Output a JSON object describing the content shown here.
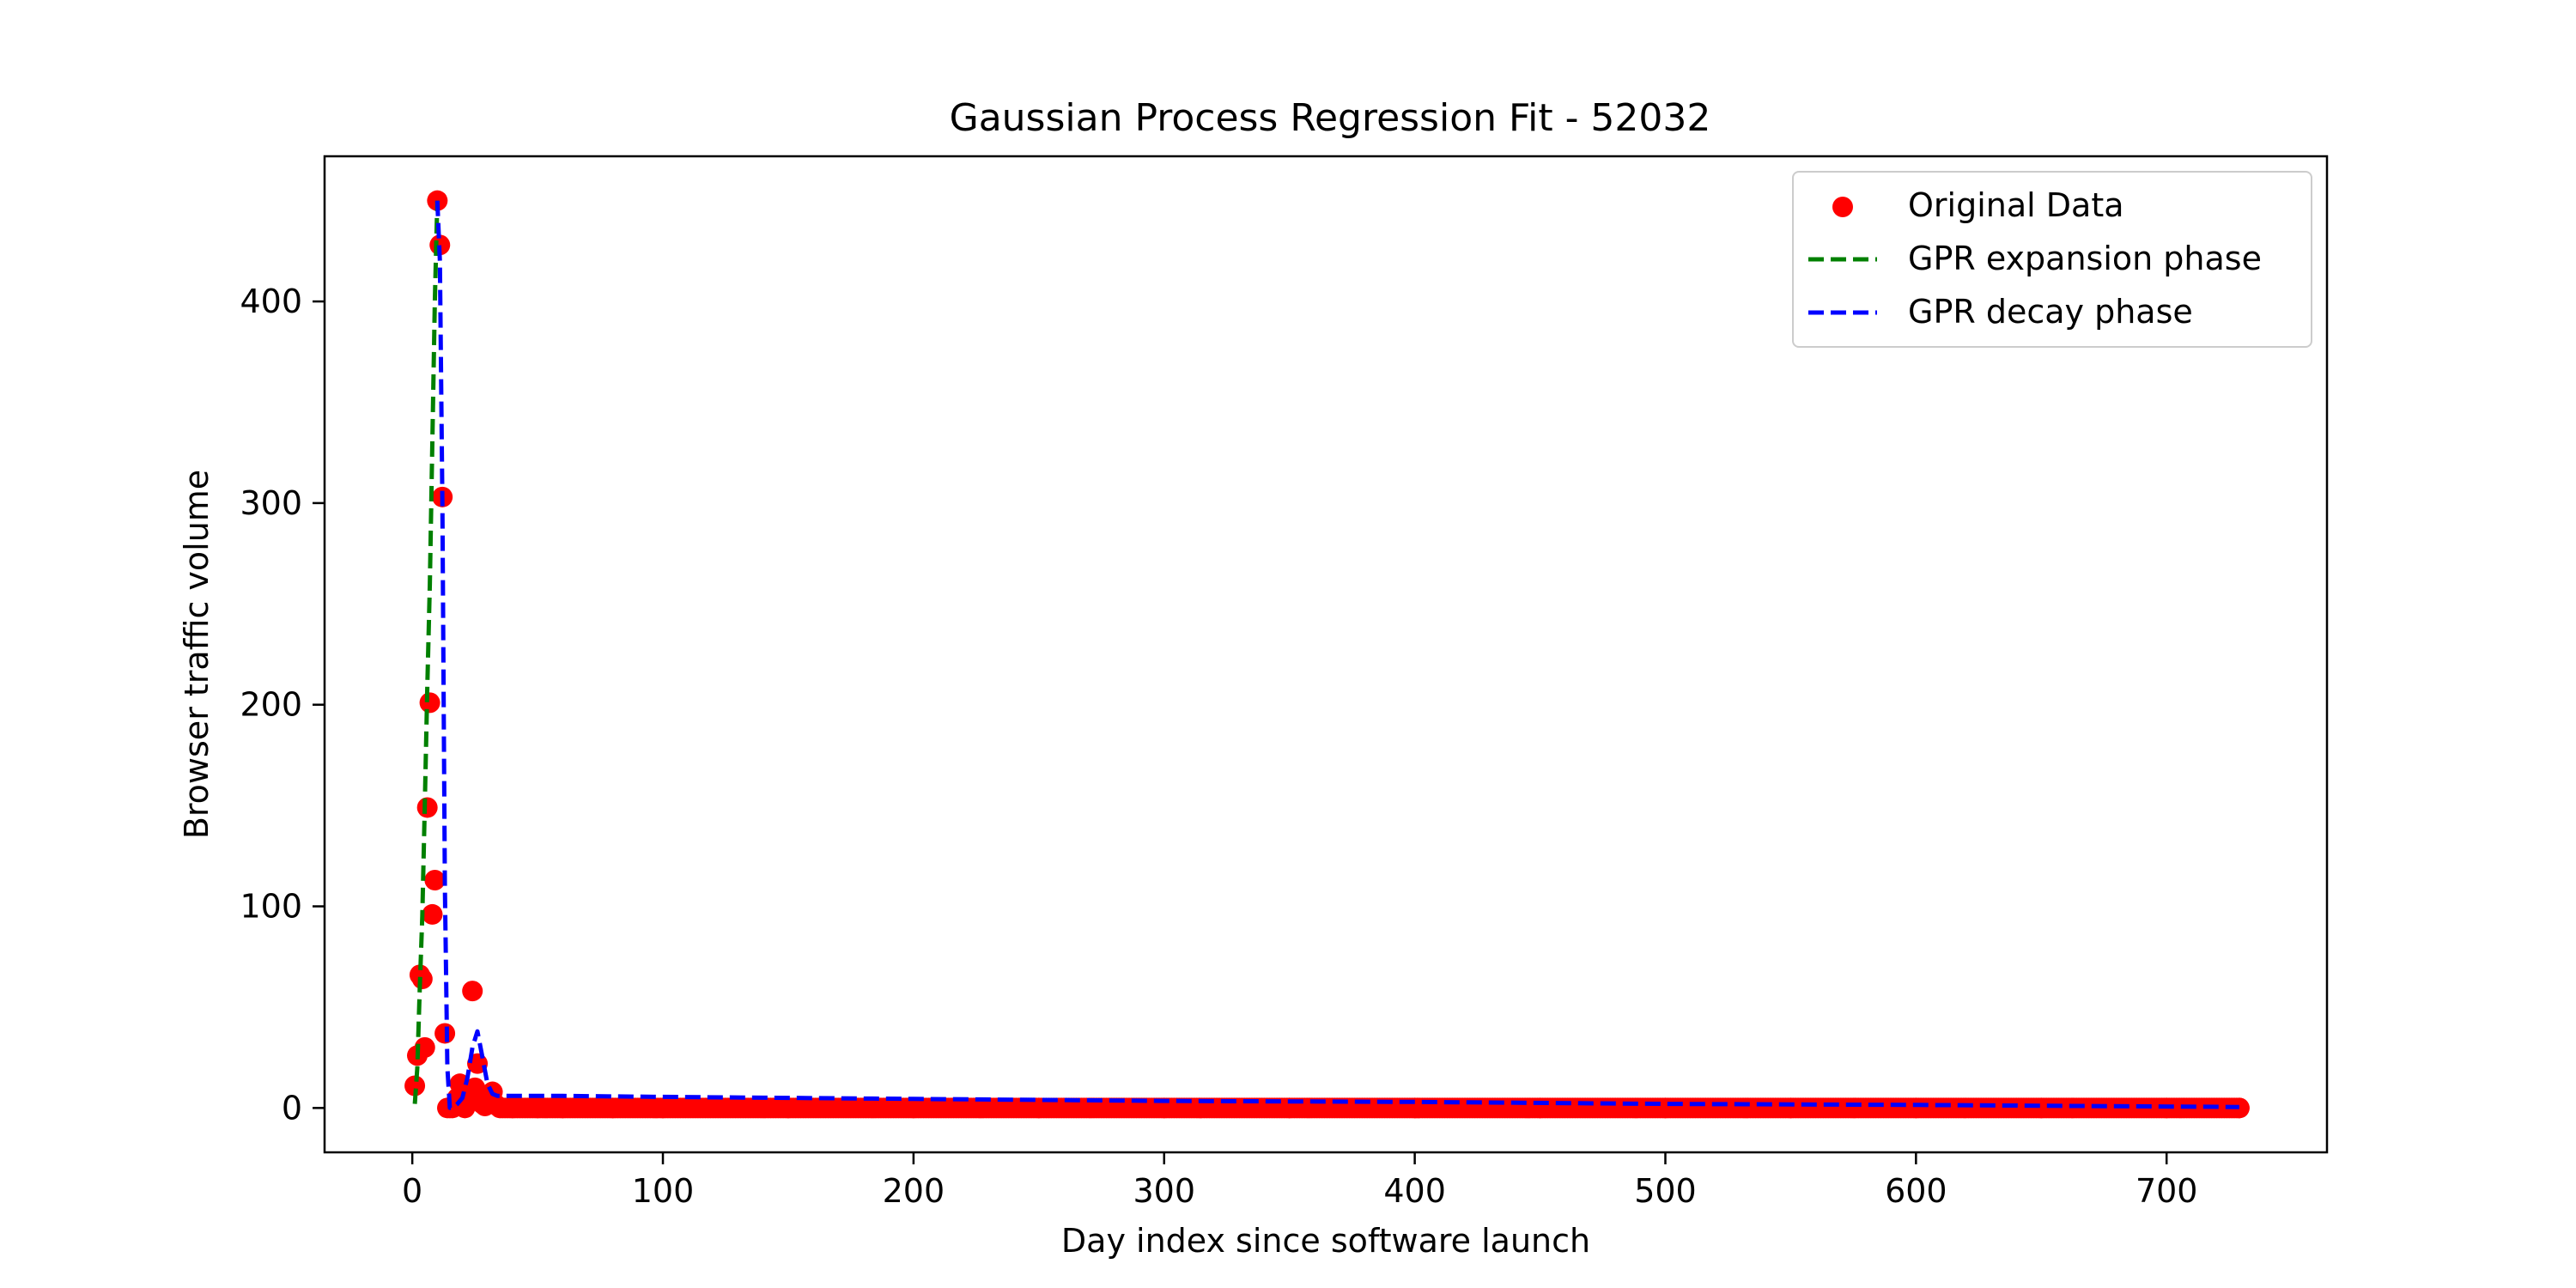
{
  "chart_data": {
    "type": "scatter",
    "title": "Gaussian Process Regression Fit - 52032",
    "xlabel": "Day index since software launch",
    "ylabel": "Browser traffic volume",
    "xlim": [
      -35,
      764
    ],
    "ylim": [
      -22,
      472
    ],
    "xticks": [
      0,
      100,
      200,
      300,
      400,
      500,
      600,
      700
    ],
    "yticks": [
      0,
      100,
      200,
      300,
      400
    ],
    "grid": false,
    "legend": {
      "placement": "top-right",
      "entries": [
        "Original Data",
        "GPR expansion phase",
        "GPR decay phase"
      ]
    },
    "colors": {
      "points": "#ff0000",
      "expansion": "#008000",
      "decay": "#0000ff"
    },
    "series": [
      {
        "name": "Original Data",
        "kind": "points",
        "x": [
          1,
          2,
          3,
          4,
          5,
          6,
          7,
          8,
          9,
          10,
          11,
          12,
          13,
          14,
          15,
          16,
          17,
          18,
          19,
          20,
          21,
          22,
          23,
          24,
          25,
          26,
          27,
          28,
          29,
          30,
          31,
          32,
          33,
          34,
          35,
          40,
          50,
          60,
          80,
          100,
          150,
          200,
          250,
          300,
          350,
          400,
          450,
          500,
          550,
          600,
          650,
          700,
          729
        ],
        "y": [
          11,
          26,
          66,
          64,
          30,
          149,
          201,
          96,
          113,
          450,
          428,
          303,
          37,
          0,
          0,
          0,
          2,
          5,
          12,
          3,
          0,
          6,
          8,
          58,
          10,
          22,
          5,
          2,
          1,
          4,
          3,
          8,
          2,
          1,
          0,
          0,
          0,
          0,
          0,
          0,
          0,
          0,
          0,
          0,
          0,
          0,
          0,
          0,
          0,
          0,
          0,
          0,
          0
        ]
      },
      {
        "name": "GPR expansion phase",
        "kind": "dashed-line",
        "x": [
          1,
          2,
          3,
          4,
          5,
          6,
          7,
          8,
          9,
          10
        ],
        "y": [
          2,
          20,
          60,
          95,
          150,
          210,
          260,
          330,
          400,
          450
        ]
      },
      {
        "name": "GPR decay phase",
        "kind": "dashed-line",
        "x": [
          10,
          11,
          12,
          13,
          14,
          15,
          16,
          18,
          20,
          22,
          24,
          26,
          28,
          30,
          32,
          34,
          40,
          60,
          100,
          200,
          300,
          400,
          500,
          600,
          729
        ],
        "y": [
          450,
          420,
          300,
          110,
          20,
          0,
          0,
          2,
          5,
          15,
          30,
          38,
          25,
          12,
          7,
          6,
          6,
          6,
          5.5,
          4.5,
          3.5,
          3,
          2,
          1.5,
          0.5
        ]
      }
    ]
  }
}
